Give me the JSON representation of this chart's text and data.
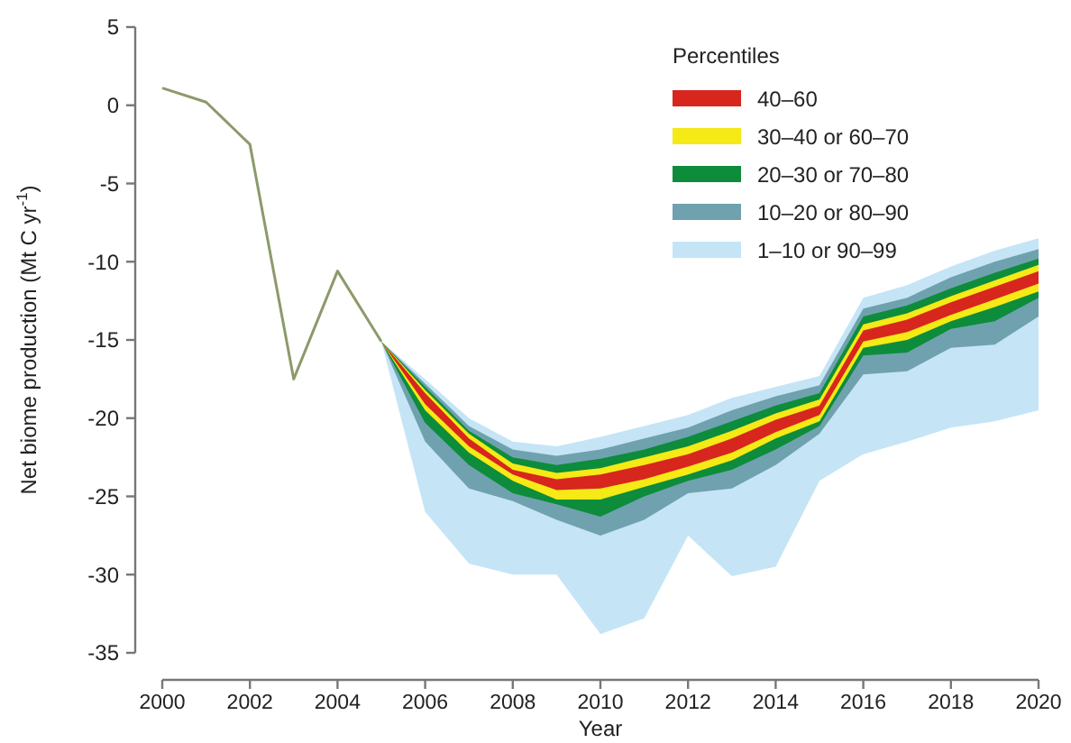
{
  "chart_data": {
    "type": "line",
    "xlabel": "Year",
    "ylabel": "Net biome production (Mt C yr$^{-1}$)",
    "legend_title": "Percentiles",
    "legend": "top right",
    "grid": false,
    "xlim": [
      2000,
      2020
    ],
    "ylim": [
      -35,
      5
    ],
    "xticks": [
      2000,
      2002,
      2004,
      2006,
      2008,
      2010,
      2012,
      2014,
      2016,
      2018,
      2020
    ],
    "yticks": [
      -35,
      -30,
      -25,
      -20,
      -15,
      -10,
      -5,
      0,
      5
    ],
    "series": [
      {
        "color": "#8c9a6c",
        "x": [
          2000,
          2001,
          2002,
          2003,
          2004,
          2005
        ],
        "values": [
          1.1,
          0.2,
          -2.5,
          -17.5,
          -10.6,
          -15.1
        ]
      },
      {
        "name": "40–60",
        "color": "#d7261e",
        "x": [
          2005,
          2006,
          2007,
          2008,
          2009,
          2010,
          2011,
          2012,
          2013,
          2014,
          2015,
          2016,
          2017,
          2018,
          2019,
          2020
        ],
        "values": [
          null,
          null,
          null,
          null,
          null,
          null,
          null,
          null,
          null,
          null,
          null,
          null,
          null,
          null,
          null,
          null
        ],
        "lower": [
          -15.1,
          -19.1,
          -21.8,
          -23.6,
          -24.6,
          -24.5,
          -23.9,
          -23.1,
          -22.2,
          -20.9,
          -19.8,
          -15.1,
          -14.5,
          -13.4,
          -12.4,
          -11.4
        ],
        "upper": [
          -15.1,
          -18.4,
          -21.3,
          -23.3,
          -23.9,
          -23.6,
          -23,
          -22.3,
          -21.3,
          -20.1,
          -19.2,
          -14.4,
          -13.7,
          -12.6,
          -11.6,
          -10.6
        ]
      },
      {
        "name": "30–40 or 60–70",
        "color": "#f5e916",
        "x": [
          2005,
          2006,
          2007,
          2008,
          2009,
          2010,
          2011,
          2012,
          2013,
          2014,
          2015,
          2016,
          2017,
          2018,
          2019,
          2020
        ],
        "values": [
          null,
          null,
          null,
          null,
          null,
          null,
          null,
          null,
          null,
          null,
          null,
          null,
          null,
          null,
          null,
          null
        ],
        "lower": [
          -15.1,
          -19.5,
          -22.2,
          -24,
          -25.2,
          -25.2,
          -24.4,
          -23.6,
          -22.7,
          -21.3,
          -20.2,
          -15.5,
          -15,
          -13.8,
          -12.9,
          -11.9
        ],
        "upper": [
          -15.1,
          -18.2,
          -21,
          -22.9,
          -23.5,
          -23.2,
          -22.5,
          -21.8,
          -20.8,
          -19.7,
          -18.8,
          -14,
          -13.3,
          -12.2,
          -11.2,
          -10.2
        ]
      },
      {
        "name": "20–30 or 70–80",
        "color": "#0d8c3c",
        "x": [
          2005,
          2006,
          2007,
          2008,
          2009,
          2010,
          2011,
          2012,
          2013,
          2014,
          2015,
          2016,
          2017,
          2018,
          2019,
          2020
        ],
        "values": [
          null,
          null,
          null,
          null,
          null,
          null,
          null,
          null,
          null,
          null,
          null,
          null,
          null,
          null,
          null,
          null
        ],
        "lower": [
          -15.1,
          -20.3,
          -23,
          -24.8,
          -25.5,
          -26.3,
          -25,
          -24,
          -23.3,
          -22,
          -20.5,
          -16,
          -15.8,
          -14.3,
          -13.8,
          -12.3
        ],
        "upper": [
          -15.1,
          -18,
          -20.8,
          -22.5,
          -23,
          -22.6,
          -22,
          -21.2,
          -20.2,
          -19.2,
          -18.4,
          -13.5,
          -12.8,
          -11.7,
          -10.7,
          -9.8
        ]
      },
      {
        "name": "10–20 or 80–90",
        "color": "#6fa2ae",
        "x": [
          2005,
          2006,
          2007,
          2008,
          2009,
          2010,
          2011,
          2012,
          2013,
          2014,
          2015,
          2016,
          2017,
          2018,
          2019,
          2020
        ],
        "values": [
          null,
          null,
          null,
          null,
          null,
          null,
          null,
          null,
          null,
          null,
          null,
          null,
          null,
          null,
          null,
          null
        ],
        "lower": [
          -15.1,
          -21.5,
          -24.5,
          -25.3,
          -26.5,
          -27.5,
          -26.5,
          -24.8,
          -24.5,
          -23,
          -21,
          -17.2,
          -17,
          -15.5,
          -15.3,
          -13.5
        ],
        "upper": [
          -15.1,
          -17.8,
          -20.5,
          -22,
          -22.4,
          -22,
          -21.3,
          -20.6,
          -19.5,
          -18.6,
          -17.9,
          -13,
          -12.3,
          -11,
          -10,
          -9.2
        ]
      },
      {
        "name": "1–10 or 90–99",
        "color": "#c5e5f6",
        "x": [
          2005,
          2006,
          2007,
          2008,
          2009,
          2010,
          2011,
          2012,
          2013,
          2014,
          2015,
          2016,
          2017,
          2018,
          2019,
          2020
        ],
        "values": [
          null,
          null,
          null,
          null,
          null,
          null,
          null,
          null,
          null,
          null,
          null,
          null,
          null,
          null,
          null,
          null
        ],
        "lower": [
          -15.1,
          -26,
          -29.3,
          -30,
          -30,
          -33.8,
          -32.8,
          -27.5,
          -30.1,
          -29.5,
          -24,
          -22.3,
          -21.5,
          -20.6,
          -20.2,
          -19.5
        ],
        "upper": [
          -15.1,
          -17.5,
          -20,
          -21.5,
          -21.8,
          -21.2,
          -20.5,
          -19.8,
          -18.7,
          -18,
          -17.3,
          -12.3,
          -11.5,
          -10.3,
          -9.3,
          -8.5
        ]
      }
    ]
  }
}
